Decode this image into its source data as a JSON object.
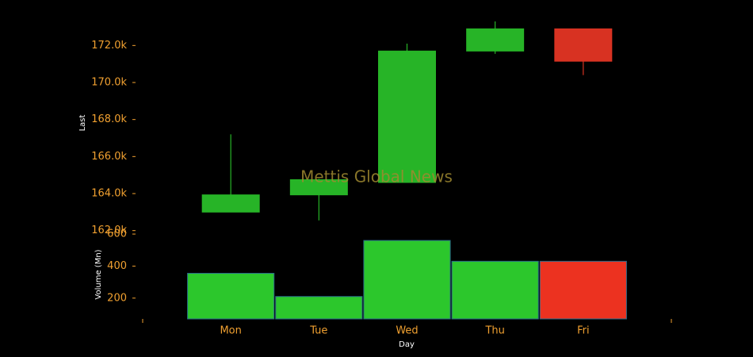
{
  "chart_data": {
    "type": "candlestick",
    "watermark": "Mettis Global News",
    "x_label": "Day",
    "y_label": "Last",
    "y2_label": "Volume (Mn)",
    "categories": [
      "Mon",
      "Tue",
      "Wed",
      "Thu",
      "Fri"
    ],
    "open": [
      163000,
      163930,
      164600,
      171700,
      172900
    ],
    "high": [
      167200,
      164800,
      172100,
      173300,
      172900
    ],
    "low": [
      163000,
      162550,
      164600,
      171550,
      170400
    ],
    "close": [
      163930,
      164750,
      171700,
      172900,
      171150
    ],
    "volume": [
      355,
      210,
      560,
      430,
      430
    ],
    "up_color": "#27b427",
    "down_color": "#d83222",
    "volume_up_color": "#2cc72c",
    "volume_down_color": "#ec3220",
    "ylim": [
      161600,
      173600
    ],
    "yticks": [
      {
        "value": 162000,
        "label": "162.0k"
      },
      {
        "value": 164000,
        "label": "164.0k"
      },
      {
        "value": 166000,
        "label": "166.0k"
      },
      {
        "value": 168000,
        "label": "168.0k"
      },
      {
        "value": 170000,
        "label": "170.0k"
      },
      {
        "value": 172000,
        "label": "172.0k"
      }
    ],
    "y2lim": [
      70,
      625
    ],
    "y2ticks": [
      200,
      400,
      600
    ]
  }
}
